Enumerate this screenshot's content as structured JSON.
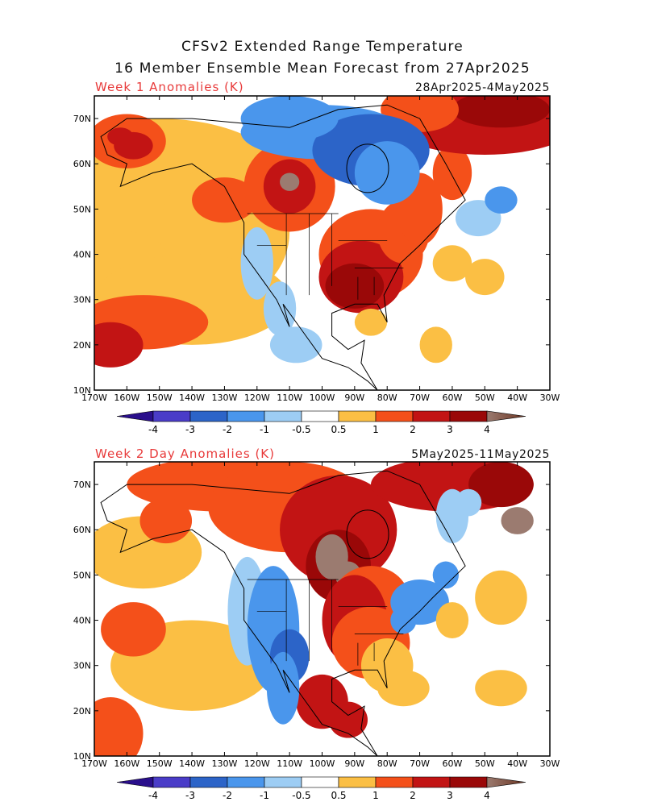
{
  "header": {
    "title_line1": "CFSv2 Extended Range Temperature",
    "title_line2": "16 Member Ensemble Mean Forecast from 27Apr2025"
  },
  "panels": [
    {
      "label": "Week 1 Anomalies (K)",
      "dates": "28Apr2025-4May2025",
      "pattern": "week1"
    },
    {
      "label": "Week 2 Day Anomalies (K)",
      "dates": "5May2025-11May2025",
      "pattern": "week2"
    }
  ],
  "axes": {
    "lon_labels": [
      "170W",
      "160W",
      "150W",
      "140W",
      "130W",
      "120W",
      "110W",
      "100W",
      "90W",
      "80W",
      "70W",
      "60W",
      "50W",
      "40W",
      "30W"
    ],
    "lat_labels": [
      "10N",
      "20N",
      "30N",
      "40N",
      "50N",
      "60N",
      "70N"
    ]
  },
  "colorbar": {
    "labels": [
      "-4",
      "-3",
      "-2",
      "-1",
      "-0.5",
      "0.5",
      "1",
      "2",
      "3",
      "4"
    ],
    "colors": {
      "lt_m4": "#2a0f8c",
      "m4_m3": "#4a3cc8",
      "m3_m2": "#2c64c8",
      "m2_m1": "#4a96ec",
      "m1_m05": "#9dcdf4",
      "neutral": "#ffffff",
      "p05_p1": "#fbbf44",
      "p1_p2": "#f4501a",
      "p2_p3": "#c21414",
      "p3_p4": "#9a0808",
      "gt_p4": "#9b7b70",
      "gt_p4_end": "#6b3320"
    }
  }
}
